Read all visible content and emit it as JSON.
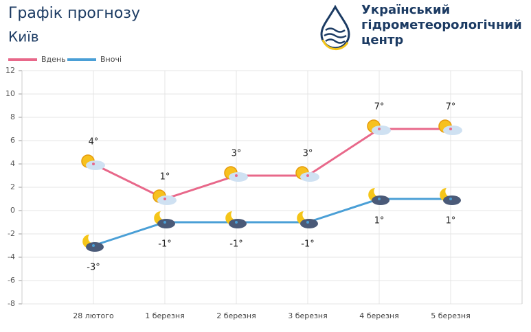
{
  "chart_data": {
    "type": "line",
    "title": "Графік прогнозу",
    "subtitle": "Київ",
    "organization": [
      "Український",
      "гідрометеорологічний",
      "центр"
    ],
    "categories": [
      "28 лютого",
      "1 березня",
      "2 березня",
      "3 березня",
      "4 березня",
      "5 березня"
    ],
    "series": [
      {
        "name": "Вдень",
        "color": "#e8688a",
        "values": [
          4,
          1,
          3,
          3,
          7,
          7
        ],
        "value_labels": [
          "4°",
          "1°",
          "3°",
          "3°",
          "7°",
          "7°"
        ]
      },
      {
        "name": "Вночі",
        "color": "#4a9fd6",
        "values": [
          -3,
          -1,
          -1,
          -1,
          1,
          1
        ],
        "value_labels": [
          "-3°",
          "-1°",
          "-1°",
          "-1°",
          "1°",
          "1°"
        ]
      }
    ],
    "ylim": [
      -8,
      12
    ],
    "yticks": [
      -8,
      -6,
      -4,
      -2,
      0,
      2,
      4,
      6,
      8,
      10,
      12
    ],
    "grid": true
  }
}
